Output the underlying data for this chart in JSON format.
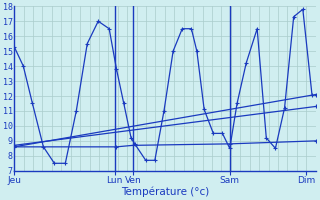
{
  "xlabel": "Température (°c)",
  "bg_color": "#d0eef0",
  "grid_color": "#aacccc",
  "line_color": "#1a3abf",
  "ylim": [
    7,
    18
  ],
  "yticks": [
    7,
    8,
    9,
    10,
    11,
    12,
    13,
    14,
    15,
    16,
    17,
    18
  ],
  "day_labels": [
    "Jeu",
    "Lun",
    "Ven",
    "Sam",
    "Dim"
  ],
  "day_tick_x": [
    0,
    55,
    65,
    118,
    160
  ],
  "xlim": [
    0,
    165
  ],
  "series_main": {
    "x": [
      0,
      5,
      10,
      16,
      22,
      28,
      34,
      40,
      46,
      52,
      56,
      60,
      64,
      66,
      72,
      77,
      82,
      87,
      92,
      97,
      100,
      104,
      109,
      114,
      118,
      122,
      127,
      133,
      138,
      143,
      148,
      153,
      158,
      163
    ],
    "y": [
      15.3,
      14.0,
      11.5,
      8.6,
      7.5,
      7.5,
      11.0,
      15.5,
      17.0,
      16.5,
      13.8,
      11.5,
      9.2,
      8.8,
      7.7,
      7.7,
      11.0,
      15.0,
      16.5,
      16.5,
      15.0,
      11.1,
      9.5,
      9.5,
      8.5,
      11.5,
      14.2,
      16.5,
      9.2,
      8.5,
      11.2,
      17.3,
      17.8,
      12.1
    ]
  },
  "series_extra": [
    {
      "x": [
        0,
        165
      ],
      "y": [
        8.6,
        12.1
      ]
    },
    {
      "x": [
        0,
        165
      ],
      "y": [
        8.7,
        11.3
      ]
    },
    {
      "x": [
        0,
        56,
        65,
        118,
        165
      ],
      "y": [
        8.6,
        8.6,
        8.7,
        8.8,
        9.0
      ]
    }
  ]
}
